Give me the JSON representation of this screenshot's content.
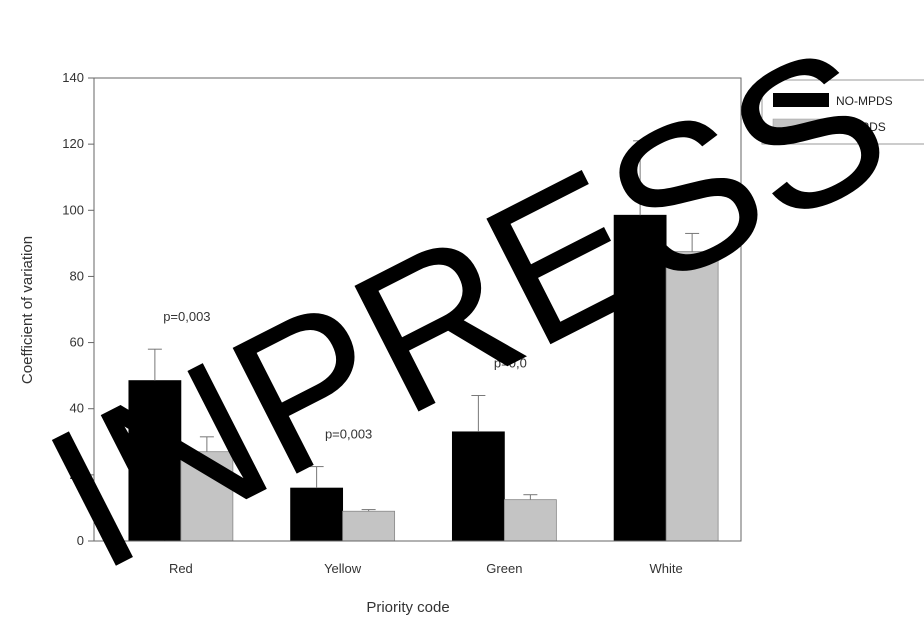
{
  "chart_data": {
    "type": "bar",
    "title": "",
    "xlabel": "Priority code",
    "ylabel": "Coefficient of variation",
    "categories": [
      "Red",
      "Yellow",
      "Green",
      "White"
    ],
    "ylim": [
      0,
      140
    ],
    "yticks": [
      0,
      20,
      40,
      60,
      80,
      100,
      120,
      140
    ],
    "grid": false,
    "legend_position": "top-right",
    "series": [
      {
        "name": "NO-MPDS",
        "color": "#000000",
        "values": [
          48.5,
          16,
          33,
          98.5
        ],
        "errors": [
          9.5,
          6.5,
          11,
          22.5
        ]
      },
      {
        "name": "W-MPDS",
        "color": "#c4c4c4",
        "values": [
          27,
          9,
          12.5,
          87.5
        ],
        "errors": [
          4.5,
          0.5,
          1.5,
          5.5
        ]
      }
    ],
    "annotations": [
      {
        "category": "Red",
        "text": "p=0,003"
      },
      {
        "category": "Yellow",
        "text": "p=0,003"
      },
      {
        "category": "Green",
        "text": "p=0,0"
      }
    ]
  },
  "watermark": {
    "text": "INPRESS",
    "color": "#000000"
  }
}
